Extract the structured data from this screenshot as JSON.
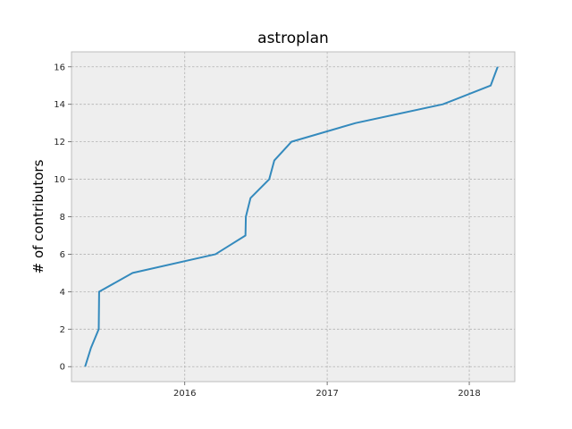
{
  "chart_data": {
    "type": "line",
    "title": "astroplan",
    "xlabel": "",
    "ylabel": "# of contributors",
    "xlim": [
      "2015-03-16",
      "2018-04-28"
    ],
    "ylim": [
      -0.8,
      16.8
    ],
    "x_ticks": [
      "2016-01-01",
      "2017-01-01",
      "2018-01-01"
    ],
    "x_tick_labels": [
      "2016",
      "2017",
      "2018"
    ],
    "y_ticks": [
      0,
      2,
      4,
      6,
      8,
      10,
      12,
      14,
      16
    ],
    "y_tick_labels": [
      "0",
      "2",
      "4",
      "6",
      "8",
      "10",
      "12",
      "14",
      "16"
    ],
    "grid": true,
    "style": "bmh",
    "colors": {
      "line": "#348abd",
      "background": "#eeeeee",
      "grid": "#b2b2b2",
      "frame": "#bcbcbc"
    },
    "series": [
      {
        "x": [
          "2015-04-20",
          "2015-05-05",
          "2015-05-25",
          "2015-05-26",
          "2015-08-20",
          "2016-03-20",
          "2016-06-05",
          "2016-06-06",
          "2016-06-18",
          "2016-08-05",
          "2016-08-18",
          "2016-10-01",
          "2017-03-15",
          "2017-10-25",
          "2018-02-25",
          "2018-03-15"
        ],
        "y": [
          0,
          1,
          2,
          4,
          5,
          6,
          7,
          8,
          9,
          10,
          11,
          12,
          13,
          14,
          15,
          16
        ]
      }
    ]
  }
}
